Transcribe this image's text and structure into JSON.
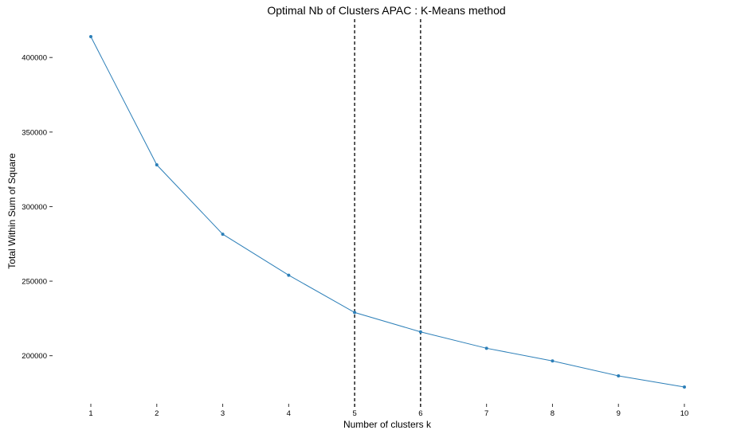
{
  "chart_data": {
    "type": "line",
    "title": "Optimal Nb of Clusters APAC : K-Means method",
    "xlabel": "Number of clusters k",
    "ylabel": "Total Within Sum of Square",
    "x": [
      1,
      2,
      3,
      4,
      5,
      6,
      7,
      8,
      9,
      10
    ],
    "series": [
      {
        "values": [
          414000,
          328000,
          281500,
          254000,
          229000,
          216000,
          205000,
          196500,
          186500,
          179000
        ]
      }
    ],
    "x_ticks": [
      "1",
      "2",
      "3",
      "4",
      "5",
      "6",
      "7",
      "8",
      "9",
      "10"
    ],
    "y_ticks": [
      200000,
      250000,
      300000,
      350000,
      400000
    ],
    "y_tick_labels": [
      "200000",
      "250000",
      "300000",
      "350000",
      "400000"
    ],
    "vlines": [
      5,
      6
    ],
    "xlim": [
      1,
      10
    ],
    "ylim": [
      179000,
      414000
    ],
    "grid": false,
    "line_color": "#2c7fb8"
  }
}
